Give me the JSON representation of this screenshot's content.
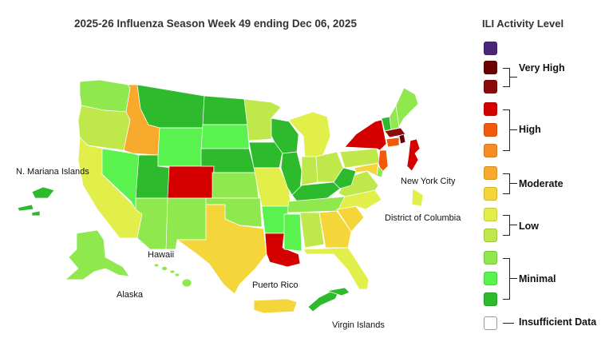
{
  "title": "2025-26 Influenza Season Week 49 ending Dec 06, 2025",
  "legend": {
    "title": "ILI Activity Level",
    "colors": [
      "#4b2678",
      "#6b0000",
      "#8b0a0a",
      "#d40000",
      "#f05a0a",
      "#f58c24",
      "#f7aa2c",
      "#f5d63a",
      "#e2ef4a",
      "#bfe84a",
      "#8ee84e",
      "#5af24e",
      "#2dbb2d"
    ],
    "insufficient_color": "#ffffff",
    "groups": {
      "very_high": "Very High",
      "high": "High",
      "moderate": "Moderate",
      "low": "Low",
      "minimal": "Minimal",
      "insufficient": "Insufficient Data"
    }
  },
  "region_labels": {
    "mariana": "N. Mariana Islands",
    "nyc": "New York City",
    "dc": "District of Columbia",
    "hawaii": "Hawaii",
    "alaska": "Alaska",
    "puerto_rico": "Puerto Rico",
    "virgin_islands": "Virgin Islands"
  },
  "palette": {
    "minimal_dark": "#2dbb2d",
    "minimal_mid": "#5af24e",
    "minimal_light": "#8ee84e",
    "low_high": "#bfe84a",
    "low_low": "#e2ef4a",
    "moderate_low": "#f5d63a",
    "moderate_high": "#f7aa2c",
    "high_low": "#f58c24",
    "high_mid": "#f05a0a",
    "high_high": "#d40000",
    "very_high_low": "#8b0a0a",
    "very_high_high": "#6b0000"
  },
  "states": [
    {
      "name": "WA",
      "level": "minimal_light"
    },
    {
      "name": "OR",
      "level": "low_high"
    },
    {
      "name": "CA",
      "level": "low_low"
    },
    {
      "name": "ID",
      "level": "moderate_high"
    },
    {
      "name": "NV",
      "level": "minimal_mid"
    },
    {
      "name": "UT",
      "level": "minimal_dark"
    },
    {
      "name": "AZ",
      "level": "minimal_light"
    },
    {
      "name": "MT",
      "level": "minimal_dark"
    },
    {
      "name": "WY",
      "level": "minimal_mid"
    },
    {
      "name": "CO",
      "level": "high_high"
    },
    {
      "name": "NM",
      "level": "minimal_light"
    },
    {
      "name": "ND",
      "level": "minimal_dark"
    },
    {
      "name": "SD",
      "level": "minimal_mid"
    },
    {
      "name": "NE",
      "level": "minimal_dark"
    },
    {
      "name": "KS",
      "level": "minimal_light"
    },
    {
      "name": "OK",
      "level": "minimal_light"
    },
    {
      "name": "TX",
      "level": "moderate_low"
    },
    {
      "name": "MN",
      "level": "low_high"
    },
    {
      "name": "IA",
      "level": "minimal_dark"
    },
    {
      "name": "MO",
      "level": "low_low"
    },
    {
      "name": "AR",
      "level": "minimal_mid"
    },
    {
      "name": "LA",
      "level": "high_high"
    },
    {
      "name": "WI",
      "level": "minimal_dark"
    },
    {
      "name": "IL",
      "level": "minimal_dark"
    },
    {
      "name": "MI",
      "level": "low_low"
    },
    {
      "name": "IN",
      "level": "low_high"
    },
    {
      "name": "OH",
      "level": "low_high"
    },
    {
      "name": "KY",
      "level": "minimal_dark"
    },
    {
      "name": "TN",
      "level": "minimal_light"
    },
    {
      "name": "MS",
      "level": "minimal_mid"
    },
    {
      "name": "AL",
      "level": "low_high"
    },
    {
      "name": "GA",
      "level": "moderate_low"
    },
    {
      "name": "FL",
      "level": "low_low"
    },
    {
      "name": "SC",
      "level": "moderate_low"
    },
    {
      "name": "NC",
      "level": "low_low"
    },
    {
      "name": "VA",
      "level": "low_high"
    },
    {
      "name": "WV",
      "level": "minimal_dark"
    },
    {
      "name": "PA",
      "level": "low_high"
    },
    {
      "name": "NY",
      "level": "high_high"
    },
    {
      "name": "VT",
      "level": "minimal_dark"
    },
    {
      "name": "NH",
      "level": "minimal_light"
    },
    {
      "name": "ME",
      "level": "minimal_light"
    },
    {
      "name": "MA",
      "level": "very_high_low"
    },
    {
      "name": "RI",
      "level": "very_high_high"
    },
    {
      "name": "CT",
      "level": "high_mid"
    },
    {
      "name": "NJ",
      "level": "high_mid"
    },
    {
      "name": "DE",
      "level": "minimal_light"
    },
    {
      "name": "MD",
      "level": "moderate_low"
    },
    {
      "name": "AK",
      "level": "minimal_light"
    },
    {
      "name": "HI",
      "level": "minimal_light"
    },
    {
      "name": "PR",
      "level": "moderate_low"
    },
    {
      "name": "VI",
      "level": "minimal_dark"
    },
    {
      "name": "MP",
      "level": "minimal_dark"
    },
    {
      "name": "NYC",
      "level": "high_high"
    },
    {
      "name": "DC",
      "level": "low_low"
    }
  ]
}
